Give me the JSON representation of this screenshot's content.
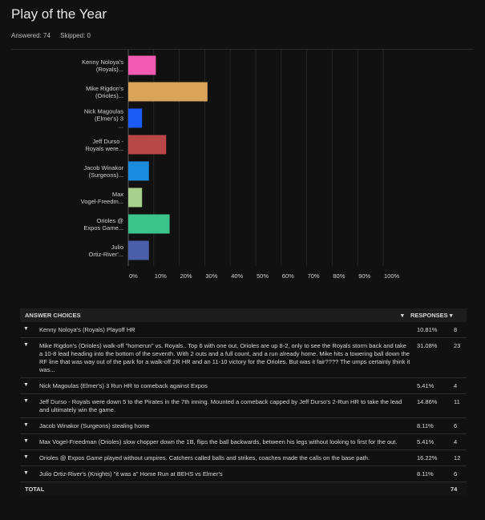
{
  "page": {
    "title": "Play of the Year",
    "answered": "Answered: 74",
    "skipped": "Skipped: 0"
  },
  "chart_data": {
    "type": "bar",
    "orientation": "horizontal",
    "categories": [
      [
        "Kenny Noloya's",
        "(Royals)..."
      ],
      [
        "Mike Rigdon's",
        "(Orioles)..."
      ],
      [
        "Nick Magoulas",
        "(Elmer's) 3",
        "..."
      ],
      [
        "Jeff Durso -",
        "Royals were..."
      ],
      [
        "Jacob Winakor",
        "(Surgeons)..."
      ],
      [
        "Max",
        "Vogel-Freedm..."
      ],
      [
        "Orioles @",
        "Expos Game..."
      ],
      [
        "Julio",
        "Ortiz-River'..."
      ]
    ],
    "values": [
      10.81,
      31.08,
      5.41,
      14.86,
      8.11,
      5.41,
      16.22,
      8.11
    ],
    "colors": [
      "#f25ab3",
      "#d9a35a",
      "#1a5cf5",
      "#b94747",
      "#1b8be0",
      "#a7d08c",
      "#3cc48a",
      "#4a5fa8"
    ],
    "xlim": [
      0,
      100
    ],
    "ticks": [
      "0%",
      "10%",
      "20%",
      "30%",
      "40%",
      "50%",
      "60%",
      "70%",
      "80%",
      "90%",
      "100%"
    ]
  },
  "table": {
    "header_choice": "ANSWER CHOICES",
    "header_responses": "RESPONSES",
    "rows": [
      {
        "text": "Kenny Noloya's (Royals) Playoff HR",
        "pct": "10.81%",
        "count": "8"
      },
      {
        "text": "Mike Rigdon's (Orioles) walk-off \"homerun\" vs. Royals.. Top 6 with one out, Orioles are up 8-2, only to see the Royals storm back and take a 10-8 lead heading into the bottom of the seventh. With 2 outs and a full count, and a run already home. Mike hits a towering ball down the RF line that was way out of the park for a walk-off 2R HR and an 11-10 victory for the Orioles. But was it fair???? The umps certainly think it was...",
        "pct": "31.08%",
        "count": "23"
      },
      {
        "text": "Nick Magoulas (Elmer's) 3 Run HR to comeback against Expos",
        "pct": "5.41%",
        "count": "4"
      },
      {
        "text": "Jeff Durso - Royals were down 5 to the Pirates in the 7th inning. Mounted a comeback capped by Jeff Durso's 2-Run HR to take the lead and ultimately win the game.",
        "pct": "14.86%",
        "count": "11"
      },
      {
        "text": "Jacob Winakor (Surgeons) stealing home",
        "pct": "8.11%",
        "count": "6"
      },
      {
        "text": "Max Vogel-Freedman (Orioles) slow chopper down the 1B, flips the ball backwards, between his legs without looking to first for the out.",
        "pct": "5.41%",
        "count": "4"
      },
      {
        "text": "Orioles @ Expos Game played without umpires. Catchers called balls and strikes, coaches made the calls on the base path.",
        "pct": "16.22%",
        "count": "12"
      },
      {
        "text": "Julio Ortiz-River's (Knights) \"it was a\" Home Run at BEHS vs Elmer's",
        "pct": "8.11%",
        "count": "6"
      }
    ],
    "total_label": "TOTAL",
    "total_value": "74"
  }
}
